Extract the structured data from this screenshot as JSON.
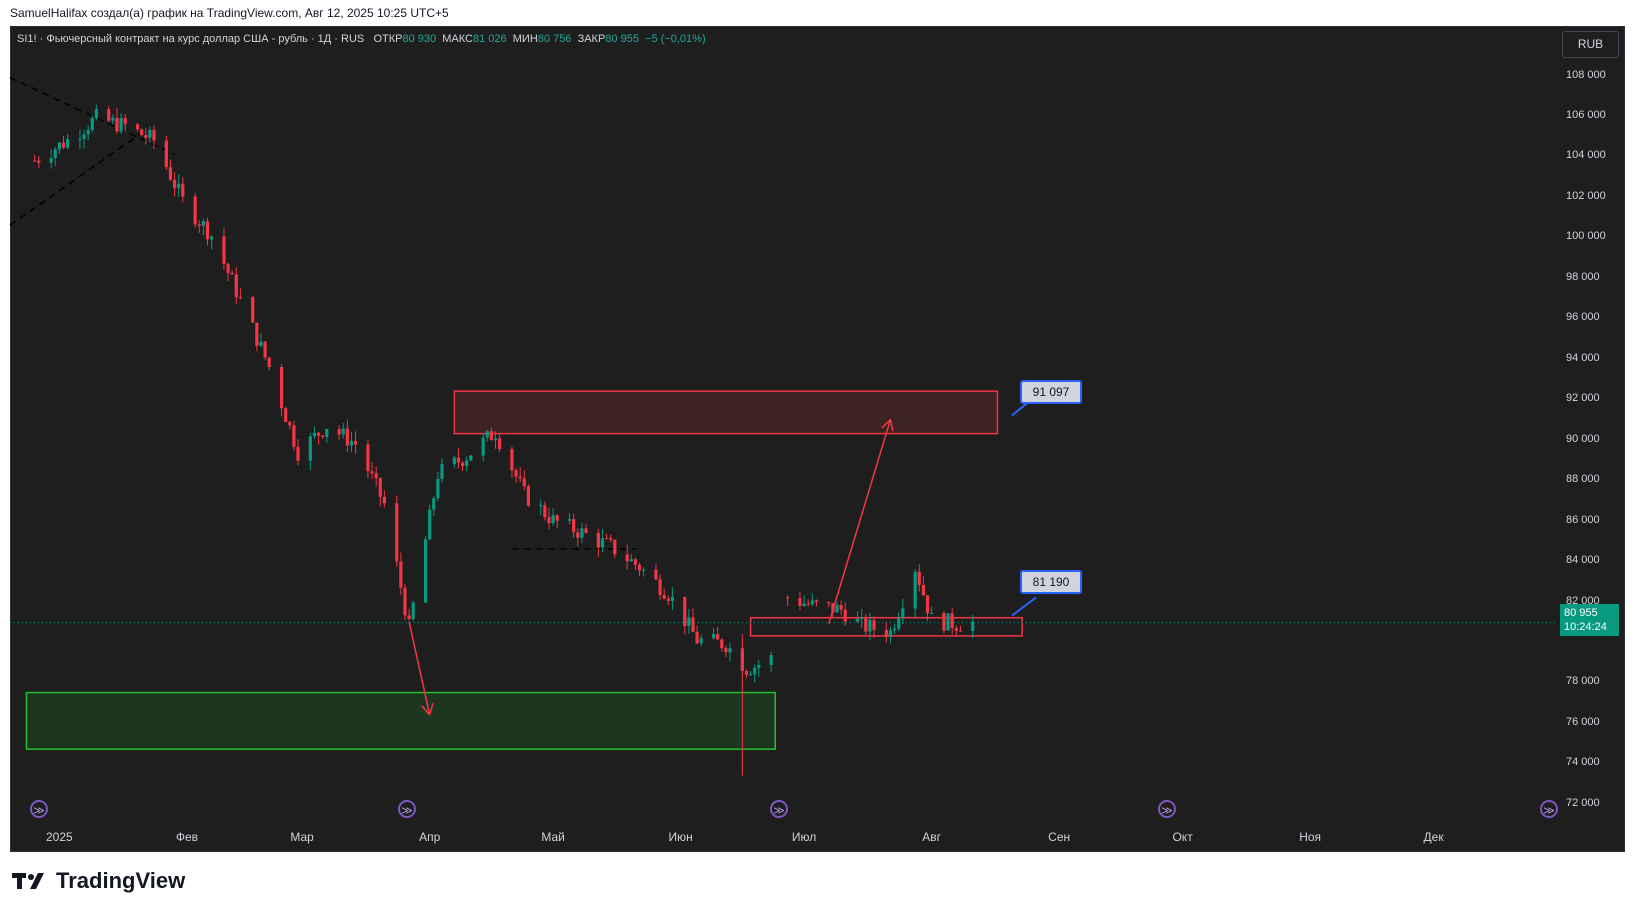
{
  "header": {
    "caption": "SamuelHalifax создал(а) график на TradingView.com, Авг 12, 2025 10:25 UTC+5"
  },
  "legend": {
    "symbol": "SI1! · Фьючерсный контракт на курс доллар США - рубль · 1Д · RUS",
    "open_label": "ОТКР",
    "open": "80 930",
    "high_label": "МАКС",
    "high": "81 026",
    "low_label": "МИН",
    "low": "80 756",
    "close_label": "ЗАКР",
    "close": "80 955",
    "change": "−5 (−0,01%)"
  },
  "currency": "RUB",
  "last_price": {
    "value": "80 955",
    "countdown": "10:24:24"
  },
  "annotations": {
    "callout_high": "91 097",
    "callout_low": "81 190"
  },
  "colors": {
    "up": "#089981",
    "down": "#f23645",
    "bg": "#1e1e1e",
    "supply_zone": "#f23645",
    "demand_zone": "#22c02a",
    "callout_border": "#2962ff"
  },
  "brand": {
    "name": "TradingView"
  },
  "chart_data": {
    "type": "candlestick",
    "title": "SI1! · Фьючерсный контракт на курс доллар США - рубль · 1Д · RUS",
    "y_ticks": [
      "108 000",
      "106 000",
      "104 000",
      "102 000",
      "100 000",
      "98 000",
      "96 000",
      "94 000",
      "92 000",
      "90 000",
      "88 000",
      "86 000",
      "84 000",
      "82 000",
      "78 000",
      "76 000",
      "74 000",
      "72 000"
    ],
    "y_tick_values": [
      108000,
      106000,
      104000,
      102000,
      100000,
      98000,
      96000,
      94000,
      92000,
      90000,
      88000,
      86000,
      84000,
      82000,
      78000,
      76000,
      74000,
      72000
    ],
    "ylim": [
      71200,
      110400
    ],
    "x_ticks": [
      "2025",
      "Фев",
      "Мар",
      "Апр",
      "Май",
      "Июн",
      "Июл",
      "Авг",
      "Сен",
      "Окт",
      "Ноя",
      "Дек"
    ],
    "series": [
      {
        "name": "SI1!",
        "close_path": [
          [
            "2024-12-26",
            103800
          ],
          [
            "2025-01-03",
            104800
          ],
          [
            "2025-01-10",
            105900
          ],
          [
            "2025-01-17",
            105500
          ],
          [
            "2025-01-24",
            104800
          ],
          [
            "2025-01-31",
            101800
          ],
          [
            "2025-02-07",
            100100
          ],
          [
            "2025-02-14",
            96900
          ],
          [
            "2025-02-21",
            93600
          ],
          [
            "2025-02-28",
            89400
          ],
          [
            "2025-03-07",
            90700
          ],
          [
            "2025-03-14",
            89800
          ],
          [
            "2025-03-21",
            86800
          ],
          [
            "2025-03-27",
            80700
          ],
          [
            "2025-04-03",
            88300
          ],
          [
            "2025-04-10",
            89200
          ],
          [
            "2025-04-17",
            90400
          ],
          [
            "2025-04-24",
            87300
          ],
          [
            "2025-05-01",
            86000
          ],
          [
            "2025-05-08",
            85400
          ],
          [
            "2025-05-15",
            84700
          ],
          [
            "2025-05-22",
            83700
          ],
          [
            "2025-05-29",
            82400
          ],
          [
            "2025-06-05",
            80100
          ],
          [
            "2025-06-12",
            79900
          ],
          [
            "2025-06-17",
            78700
          ],
          [
            "2025-06-19",
            78800
          ],
          [
            "2025-06-24",
            79300
          ]
        ]
      },
      {
        "name": "SI1! (continued)",
        "close_path": [
          [
            "2025-06-27",
            82200
          ],
          [
            "2025-07-03",
            81800
          ],
          [
            "2025-07-10",
            81600
          ],
          [
            "2025-07-15",
            80800
          ],
          [
            "2025-07-22",
            80500
          ],
          [
            "2025-07-28",
            83700
          ],
          [
            "2025-08-01",
            81100
          ],
          [
            "2025-08-07",
            80900
          ],
          [
            "2025-08-12",
            80955
          ]
        ]
      }
    ],
    "zones": [
      {
        "kind": "supply",
        "from": "2025-04-07",
        "to": "2025-08-17",
        "low": 90300,
        "high": 92400
      },
      {
        "kind": "support",
        "from": "2025-06-18",
        "to": "2025-08-23",
        "low": 80300,
        "high": 81200
      },
      {
        "kind": "target",
        "from": "2024-12-24",
        "to": "2025-06-24",
        "low": 74700,
        "high": 77500
      }
    ],
    "forecast_arrows": [
      {
        "from": [
          "2025-03-27",
          81000
        ],
        "to": [
          "2025-04-01",
          76400
        ]
      },
      {
        "from": [
          "2025-07-07",
          80900
        ],
        "to": [
          "2025-07-22",
          91000
        ]
      }
    ],
    "labels": [
      {
        "text": "91 097",
        "price": 91097
      },
      {
        "text": "81 190",
        "price": 81190
      }
    ]
  }
}
